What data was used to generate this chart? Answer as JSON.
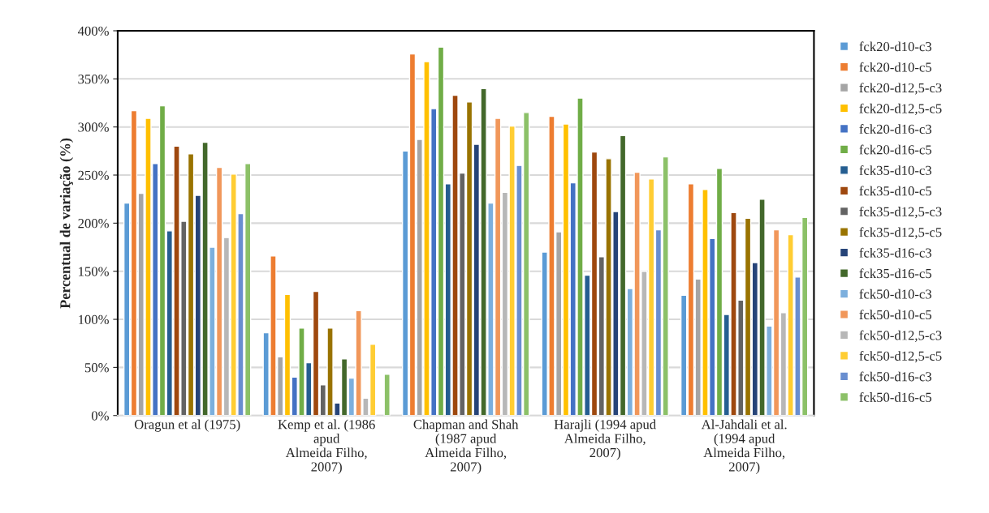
{
  "chart_data": {
    "type": "bar",
    "ylabel": "Percentual de variação (%)",
    "categories": [
      "Oragun et al (1975)",
      "Kemp et al. (1986\napud\nAlmeida Filho,\n2007)",
      "Chapman and Shah\n(1987 apud\nAlmeida Filho,\n2007)",
      "Harajli (1994 apud\nAlmeida Filho,\n2007)",
      "Al-Jahdali et al.\n(1994 apud\nAlmeida Filho,\n2007)"
    ],
    "series": [
      {
        "name": "fck20-d10-c3",
        "color": "#5b9bd5",
        "values": [
          221,
          86,
          275,
          170,
          125
        ]
      },
      {
        "name": "fck20-d10-c5",
        "color": "#ed7d31",
        "values": [
          317,
          166,
          376,
          311,
          241
        ]
      },
      {
        "name": "fck20-d12,5-c3",
        "color": "#a5a5a5",
        "values": [
          231,
          61,
          287,
          191,
          142
        ]
      },
      {
        "name": "fck20-d12,5-c5",
        "color": "#ffc000",
        "values": [
          309,
          126,
          368,
          303,
          235
        ]
      },
      {
        "name": "fck20-d16-c3",
        "color": "#4472c4",
        "values": [
          262,
          40,
          319,
          242,
          184
        ]
      },
      {
        "name": "fck20-d16-c5",
        "color": "#70ad47",
        "values": [
          322,
          91,
          383,
          330,
          257
        ]
      },
      {
        "name": "fck35-d10-c3",
        "color": "#255e91",
        "values": [
          192,
          55,
          241,
          146,
          105
        ]
      },
      {
        "name": "fck35-d10-c5",
        "color": "#9e480e",
        "values": [
          280,
          129,
          333,
          274,
          211
        ]
      },
      {
        "name": "fck35-d12,5-c3",
        "color": "#636363",
        "values": [
          202,
          32,
          252,
          165,
          120
        ]
      },
      {
        "name": "fck35-d12,5-c5",
        "color": "#997300",
        "values": [
          272,
          91,
          326,
          267,
          205
        ]
      },
      {
        "name": "fck35-d16-c3",
        "color": "#264478",
        "values": [
          229,
          13,
          282,
          212,
          159
        ]
      },
      {
        "name": "fck35-d16-c5",
        "color": "#43682b",
        "values": [
          284,
          59,
          340,
          291,
          225
        ]
      },
      {
        "name": "fck50-d10-c3",
        "color": "#7cafdd",
        "values": [
          175,
          39,
          221,
          132,
          93
        ]
      },
      {
        "name": "fck50-d10-c5",
        "color": "#f1975a",
        "values": [
          258,
          109,
          309,
          253,
          193
        ]
      },
      {
        "name": "fck50-d12,5-c3",
        "color": "#b7b7b7",
        "values": [
          185,
          18,
          232,
          150,
          107
        ]
      },
      {
        "name": "fck50-d12,5-c5",
        "color": "#ffcd33",
        "values": [
          251,
          74,
          301,
          246,
          188
        ]
      },
      {
        "name": "fck50-d16-c3",
        "color": "#698ed0",
        "values": [
          210,
          null,
          260,
          193,
          144
        ]
      },
      {
        "name": "fck50-d16-c5",
        "color": "#8cc168",
        "values": [
          262,
          43,
          315,
          269,
          206
        ]
      }
    ],
    "ylim": [
      0,
      400
    ],
    "yticks": [
      {
        "value": 0,
        "label": "0%"
      },
      {
        "value": 50,
        "label": "50%"
      },
      {
        "value": 100,
        "label": "100%"
      },
      {
        "value": 150,
        "label": "150%"
      },
      {
        "value": 200,
        "label": "200%"
      },
      {
        "value": 250,
        "label": "250%"
      },
      {
        "value": 300,
        "label": "300%"
      },
      {
        "value": 350,
        "label": "350%"
      },
      {
        "value": 400,
        "label": "400%"
      }
    ],
    "grid": "y",
    "legend": "right"
  }
}
